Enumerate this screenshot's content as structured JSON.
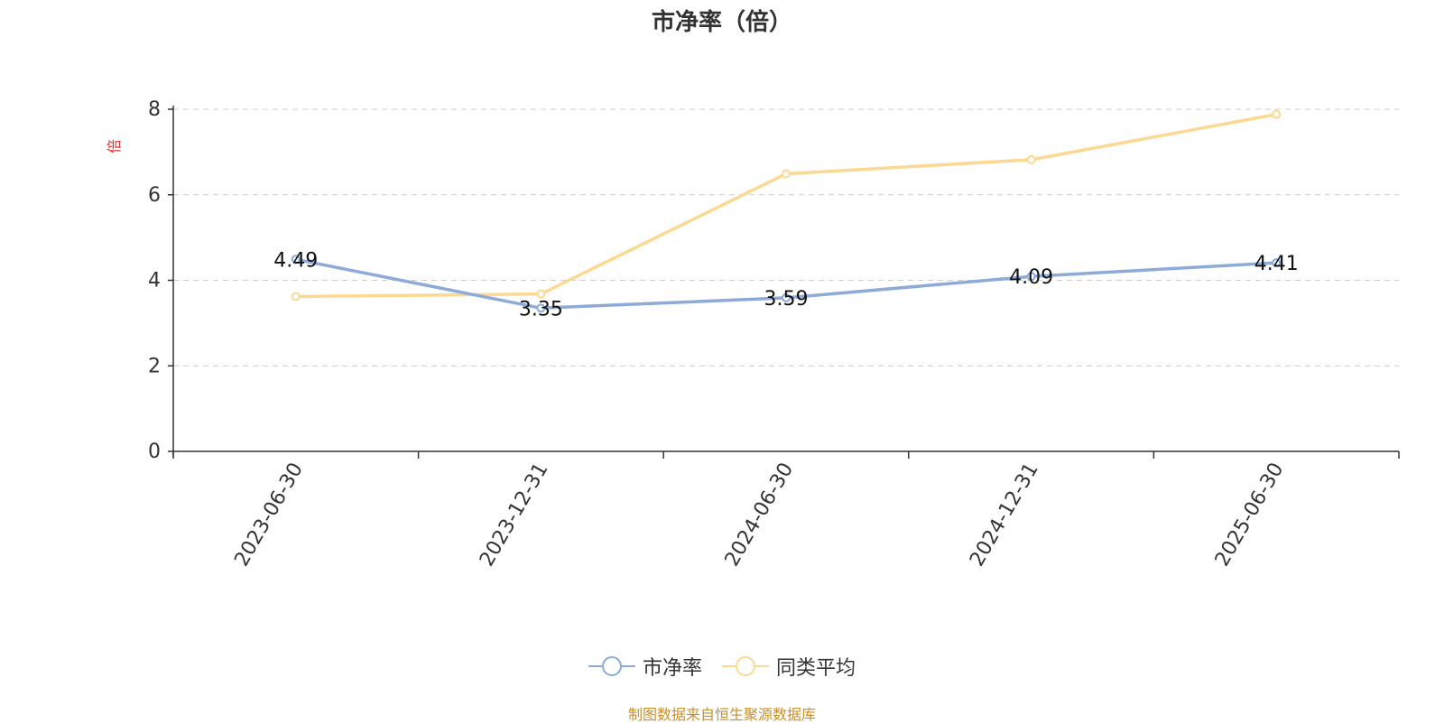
{
  "chart_data": {
    "type": "line",
    "title": "市净率（倍）",
    "ylabel": "倍",
    "xlabel": "",
    "categories": [
      "2023-06-30",
      "2023-12-31",
      "2024-06-30",
      "2024-12-31",
      "2025-06-30"
    ],
    "ylim": [
      0,
      8
    ],
    "yticks": [
      0,
      2,
      4,
      6,
      8
    ],
    "grid": true,
    "legend_position": "bottom",
    "series": [
      {
        "name": "市净率",
        "values": [
          4.49,
          3.35,
          3.59,
          4.09,
          4.41
        ],
        "color": "#8eaad8",
        "labels": [
          "4.49",
          "3.35",
          "3.59",
          "4.09",
          "4.41"
        ]
      },
      {
        "name": "同类平均",
        "values": [
          3.62,
          3.68,
          6.49,
          6.82,
          7.88
        ],
        "color": "#fbd993"
      }
    ]
  },
  "footer": {
    "text": "制图数据来自恒生聚源数据库"
  },
  "colors": {
    "footer": "#c8902a",
    "ylabel": "#e03030",
    "grid": "#cccccc",
    "axis": "#333333"
  }
}
